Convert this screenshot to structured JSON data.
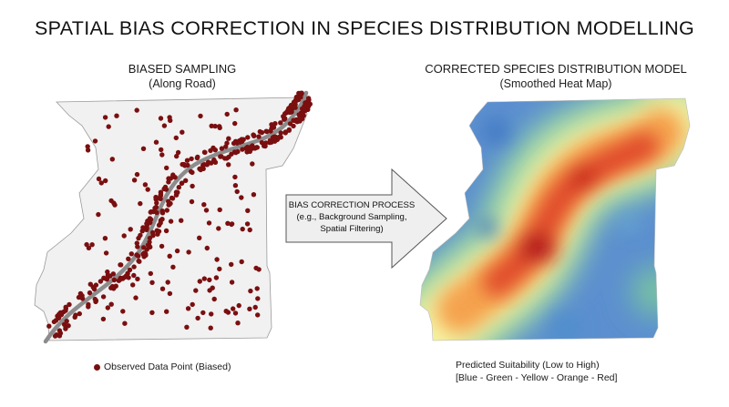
{
  "title": "SPATIAL BIAS CORRECTION IN SPECIES DISTRIBUTION MODELLING",
  "left_panel": {
    "title": "BIASED SAMPLING",
    "subtitle": "(Along Road)",
    "legend": "Observed Data Point (Biased)"
  },
  "process": {
    "line1": "BIAS CORRECTION PROCESS",
    "line2": "(e.g., Background Sampling,",
    "line3": "Spatial Filtering)"
  },
  "right_panel": {
    "title": "CORRECTED SPECIES DISTRIBUTION MODEL",
    "subtitle": "(Smoothed Heat Map)",
    "legend_line1": "Predicted Suitability (Low to High)",
    "legend_line2": "[Blue - Green - Yellow - Orange - Red]"
  },
  "colors": {
    "point": "#7a0f10",
    "road": "#8c8c8c",
    "map_fill": "#f1f1f1",
    "arrow_fill": "#efefef",
    "heat_low": "#4a7fc6",
    "heat_mid": "#f7f09a",
    "heat_high": "#b3141c"
  }
}
